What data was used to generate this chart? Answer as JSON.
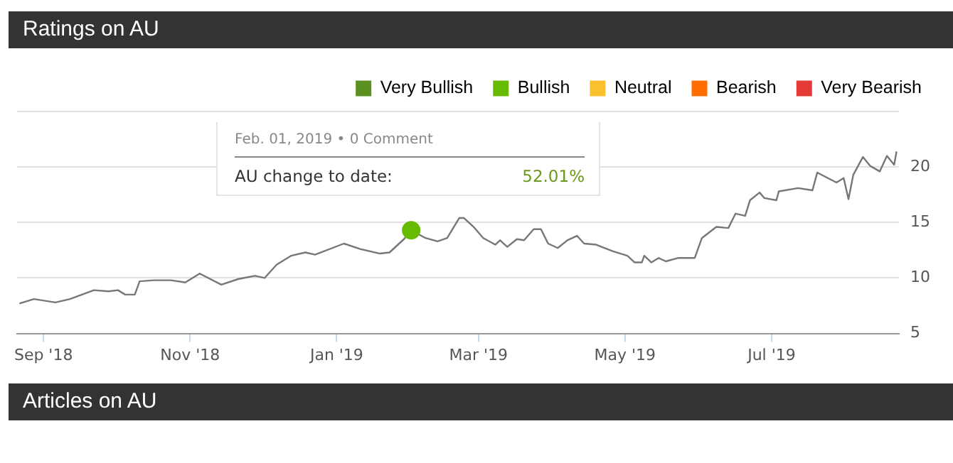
{
  "chart_data": {
    "type": "line",
    "title": "Ratings on AU",
    "annotations": [
      "Feb. 01, 2019 • 0 Comment",
      "AU change to date:",
      "52.01%",
      "Articles on AU"
    ],
    "xlim": [
      "2018-08-21",
      "2019-08-23"
    ],
    "xticks": [
      {
        "value": "2018-09-01",
        "label": "Sep '18"
      },
      {
        "value": "2018-11-01",
        "label": "Nov '18"
      },
      {
        "value": "2019-01-01",
        "label": "Jan '19"
      },
      {
        "value": "2019-03-01",
        "label": "Mar '19"
      },
      {
        "value": "2019-05-01",
        "label": "May '19"
      },
      {
        "value": "2019-07-01",
        "label": "Jul '19"
      }
    ],
    "ylim": [
      5,
      25
    ],
    "yticks": [
      5,
      10,
      15,
      20,
      {
        "value": 25,
        "label": null
      }
    ],
    "grid": "y",
    "legend": "top right",
    "line_style": "solid",
    "series": [
      {
        "color": "#777777",
        "marker": "none",
        "x": [
          "2018-08-22",
          "2018-08-28",
          "2018-09-06",
          "2018-09-12",
          "2018-09-22",
          "2018-09-28",
          "2018-10-02",
          "2018-10-05",
          "2018-10-09",
          "2018-10-11",
          "2018-10-17",
          "2018-10-24",
          "2018-10-30",
          "2018-11-05",
          "2018-11-14",
          "2018-11-21",
          "2018-11-28",
          "2018-12-02",
          "2018-12-07",
          "2018-12-13",
          "2018-12-19",
          "2018-12-23",
          "2019-01-04",
          "2019-01-11",
          "2019-01-19",
          "2019-01-23",
          "2019-01-29",
          "2019-02-01",
          "2019-02-07",
          "2019-02-12",
          "2019-02-16",
          "2019-02-21",
          "2019-02-23",
          "2019-02-27",
          "2019-03-03",
          "2019-03-08",
          "2019-03-10",
          "2019-03-13",
          "2019-03-17",
          "2019-03-20",
          "2019-03-24",
          "2019-03-27",
          "2019-03-30",
          "2019-04-03",
          "2019-04-07",
          "2019-04-11",
          "2019-04-14",
          "2019-04-19",
          "2019-04-26",
          "2019-05-02",
          "2019-05-05",
          "2019-05-08",
          "2019-05-09",
          "2019-05-12",
          "2019-05-15",
          "2019-05-18",
          "2019-05-23",
          "2019-05-30",
          "2019-06-02",
          "2019-06-08",
          "2019-06-13",
          "2019-06-16",
          "2019-06-20",
          "2019-06-22",
          "2019-06-26",
          "2019-06-28",
          "2019-07-03",
          "2019-07-04",
          "2019-07-12",
          "2019-07-18",
          "2019-07-20",
          "2019-07-28",
          "2019-07-31",
          "2019-08-02",
          "2019-08-04",
          "2019-08-08",
          "2019-08-11",
          "2019-08-15",
          "2019-08-18",
          "2019-08-21",
          "2019-08-22"
        ],
        "values": [
          7.7,
          8.1,
          7.8,
          8.1,
          8.9,
          8.8,
          8.9,
          8.5,
          8.5,
          9.7,
          9.8,
          9.8,
          9.6,
          10.4,
          9.4,
          9.9,
          10.2,
          10.0,
          11.2,
          12.0,
          12.3,
          12.1,
          13.1,
          12.6,
          12.2,
          12.3,
          13.5,
          14.3,
          13.6,
          13.3,
          13.6,
          15.4,
          15.4,
          14.6,
          13.6,
          13.0,
          13.4,
          12.8,
          13.5,
          13.4,
          14.4,
          14.4,
          13.1,
          12.7,
          13.4,
          13.8,
          13.1,
          13.0,
          12.4,
          12.0,
          11.4,
          11.4,
          12.0,
          11.4,
          11.8,
          11.5,
          11.8,
          11.8,
          13.6,
          14.6,
          14.5,
          15.8,
          15.6,
          17.0,
          17.7,
          17.2,
          17.0,
          17.8,
          18.1,
          17.9,
          19.5,
          18.6,
          19.0,
          17.1,
          19.3,
          20.9,
          20.1,
          19.6,
          21.0,
          20.2,
          21.4
        ]
      },
      {
        "type": "scatter",
        "name": "Very Bullish",
        "color": "#5b9120"
      },
      {
        "type": "scatter",
        "name": "Bullish",
        "color": "#66bb00",
        "marker": "circle",
        "x": [
          "2019-02-01"
        ],
        "values": [
          14.3
        ]
      },
      {
        "type": "scatter",
        "name": "Neutral",
        "color": "#fbc02d"
      },
      {
        "type": "scatter",
        "name": "Bearish",
        "color": "#ff6d00"
      },
      {
        "type": "scatter",
        "name": "Very Bearish",
        "color": "#e53935"
      }
    ]
  }
}
